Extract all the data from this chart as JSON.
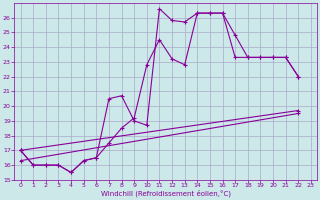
{
  "xlabel": "Windchill (Refroidissement éolien,°C)",
  "background_color": "#cce8e8",
  "grid_color": "#aaaacc",
  "line_color": "#880099",
  "xlim": [
    -0.5,
    23.5
  ],
  "ylim": [
    15,
    27
  ],
  "yticks": [
    15,
    16,
    17,
    18,
    19,
    20,
    21,
    22,
    23,
    24,
    25,
    26
  ],
  "xticks": [
    0,
    1,
    2,
    3,
    4,
    5,
    6,
    7,
    8,
    9,
    10,
    11,
    12,
    13,
    14,
    15,
    16,
    17,
    18,
    19,
    20,
    21,
    22,
    23
  ],
  "curve1_x": [
    0,
    1,
    2,
    3,
    4,
    5,
    6,
    7,
    8,
    9,
    10,
    11,
    12,
    13,
    14,
    15,
    16,
    17,
    18,
    19,
    20,
    21,
    22
  ],
  "curve1_y": [
    17.0,
    16.0,
    16.0,
    16.0,
    15.5,
    16.3,
    16.5,
    20.5,
    20.7,
    19.0,
    18.7,
    26.6,
    25.8,
    25.7,
    26.3,
    26.3,
    26.3,
    24.8,
    23.3,
    23.3,
    23.3,
    23.3,
    22.0
  ],
  "curve2_x": [
    0,
    1,
    2,
    3,
    4,
    5,
    6,
    7,
    8,
    9,
    10,
    11,
    12,
    13,
    14,
    15,
    16,
    17,
    18,
    19,
    20,
    21,
    22
  ],
  "curve2_y": [
    17.0,
    16.0,
    16.0,
    16.0,
    15.5,
    16.3,
    16.5,
    17.5,
    18.5,
    19.2,
    22.8,
    24.5,
    23.2,
    22.8,
    26.3,
    26.3,
    26.3,
    23.3,
    23.3,
    23.3,
    23.3,
    23.3,
    22.0
  ],
  "line1_x": [
    0,
    22
  ],
  "line1_y": [
    16.3,
    19.5
  ],
  "line2_x": [
    0,
    22
  ],
  "line2_y": [
    17.0,
    19.7
  ]
}
